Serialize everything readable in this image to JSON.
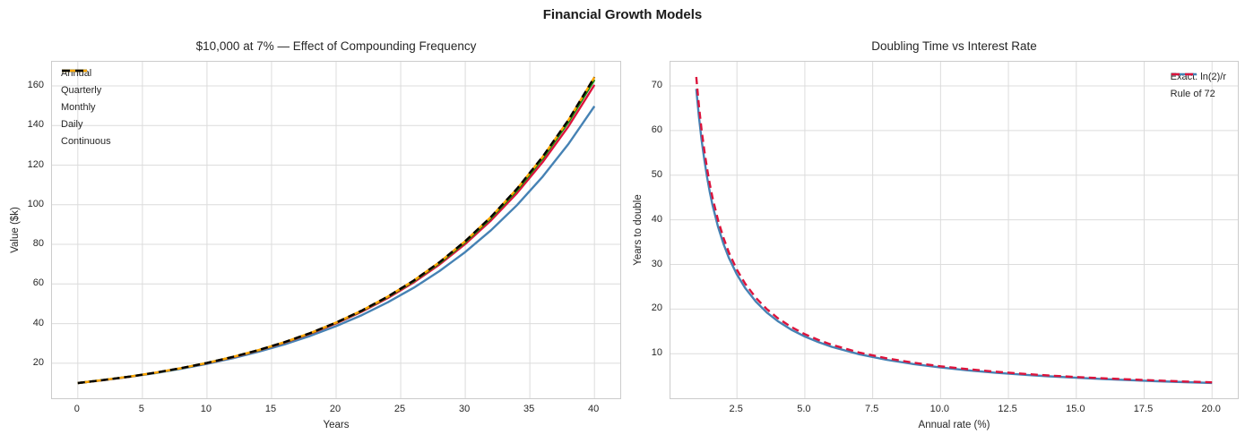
{
  "figure": {
    "title": "Financial Growth Models"
  },
  "colors": {
    "grid": "#dcdcdc",
    "spine": "#cccccc",
    "text": "#262626",
    "annual_blue": "#4682B4",
    "quarterly_crimson": "#DC143C",
    "monthly_green": "#0a8a0a",
    "daily_orange": "#FFA500",
    "continuous_black": "#000000"
  },
  "chart_data": [
    {
      "type": "line",
      "title": "$10,000 at 7% — Effect of Compounding Frequency",
      "xlabel": "Years",
      "ylabel": "Value ($k)",
      "xlim": [
        -2,
        42
      ],
      "ylim": [
        2.3,
        172.2
      ],
      "xticks": [
        0,
        5,
        10,
        15,
        20,
        25,
        30,
        35,
        40
      ],
      "xtick_labels": [
        "0",
        "5",
        "10",
        "15",
        "20",
        "25",
        "30",
        "35",
        "40"
      ],
      "yticks": [
        20,
        40,
        60,
        80,
        100,
        120,
        140,
        160
      ],
      "ytick_labels": [
        "20",
        "40",
        "60",
        "80",
        "100",
        "120",
        "140",
        "160"
      ],
      "grid": true,
      "legend_position": "upper-left",
      "x": [
        0,
        2,
        4,
        6,
        8,
        10,
        12,
        14,
        16,
        18,
        20,
        22,
        24,
        26,
        28,
        30,
        32,
        34,
        36,
        38,
        40
      ],
      "series": [
        {
          "name": "Annual",
          "color": "#4682B4",
          "dash": false,
          "values": [
            10,
            11.45,
            13.11,
            15.01,
            17.18,
            19.67,
            22.52,
            25.79,
            29.52,
            33.8,
            38.7,
            44.3,
            50.72,
            58.07,
            66.49,
            76.12,
            87.15,
            99.78,
            114.24,
            130.79,
            149.74
          ]
        },
        {
          "name": "Quarterly",
          "color": "#DC143C",
          "dash": false,
          "values": [
            10,
            11.49,
            13.2,
            15.16,
            17.42,
            20.02,
            23.0,
            26.42,
            30.35,
            34.87,
            40.06,
            46.03,
            52.88,
            60.75,
            69.8,
            80.19,
            92.13,
            105.84,
            121.6,
            139.7,
            160.5
          ]
        },
        {
          "name": "Monthly",
          "color": "#0a8a0a",
          "dash": false,
          "values": [
            10,
            11.5,
            13.22,
            15.2,
            17.48,
            20.1,
            23.11,
            26.57,
            30.54,
            35.12,
            40.39,
            46.44,
            53.39,
            61.39,
            70.58,
            81.16,
            93.31,
            107.29,
            123.38,
            141.86,
            163.11
          ]
        },
        {
          "name": "Daily",
          "color": "#FFA500",
          "dash": false,
          "values": [
            10,
            11.5,
            13.23,
            15.22,
            17.51,
            20.14,
            23.16,
            26.64,
            30.64,
            35.25,
            40.54,
            46.63,
            53.64,
            61.7,
            70.97,
            81.63,
            93.9,
            108.0,
            124.23,
            142.9,
            164.4
          ]
        },
        {
          "name": "Continuous",
          "color": "#000000",
          "dash": true,
          "values": [
            10,
            11.5,
            13.23,
            15.22,
            17.51,
            20.14,
            23.16,
            26.64,
            30.65,
            35.25,
            40.55,
            46.65,
            53.65,
            61.72,
            70.99,
            81.66,
            93.93,
            108.05,
            124.29,
            142.97,
            164.45
          ]
        }
      ]
    },
    {
      "type": "line",
      "title": "Doubling Time vs Interest Rate",
      "xlabel": "Annual rate (%)",
      "ylabel": "Years to double",
      "xlim": [
        0.05,
        20.95
      ],
      "ylim": [
        0.04,
        75.4
      ],
      "xticks": [
        2.5,
        5,
        7.5,
        10,
        12.5,
        15,
        17.5,
        20
      ],
      "xtick_labels": [
        "2.5",
        "5.0",
        "7.5",
        "10.0",
        "12.5",
        "15.0",
        "17.5",
        "20.0"
      ],
      "yticks": [
        10,
        20,
        30,
        40,
        50,
        60,
        70
      ],
      "ytick_labels": [
        "10",
        "20",
        "30",
        "40",
        "50",
        "60",
        "70"
      ],
      "grid": true,
      "legend_position": "upper-right",
      "x": [
        1,
        1.1,
        1.2,
        1.3,
        1.4,
        1.5,
        1.6,
        1.8,
        2,
        2.2,
        2.5,
        2.8,
        3.2,
        3.6,
        4,
        4.5,
        5,
        5.5,
        6,
        7,
        8,
        9,
        10,
        11,
        12,
        13,
        14,
        15,
        16,
        17,
        18,
        19,
        20
      ],
      "series": [
        {
          "name": "Exact: ln(2)/r",
          "color": "#4682B4",
          "dash": false,
          "values": [
            69.31,
            63.01,
            57.76,
            53.32,
            49.51,
            46.21,
            43.32,
            38.51,
            34.66,
            31.51,
            27.73,
            24.76,
            21.66,
            19.25,
            17.33,
            15.4,
            13.86,
            12.6,
            11.55,
            9.9,
            8.66,
            7.7,
            6.93,
            6.3,
            5.78,
            5.33,
            4.95,
            4.62,
            4.33,
            4.08,
            3.85,
            3.65,
            3.47
          ]
        },
        {
          "name": "Rule of 72",
          "color": "#DC143C",
          "dash": true,
          "values": [
            72,
            65.45,
            60,
            55.38,
            51.43,
            48,
            45,
            40,
            36,
            32.73,
            28.8,
            25.71,
            22.5,
            20,
            18,
            16,
            14.4,
            13.09,
            12,
            10.29,
            9,
            8,
            7.2,
            6.55,
            6,
            5.54,
            5.14,
            4.8,
            4.5,
            4.24,
            4,
            3.79,
            3.6
          ]
        }
      ]
    }
  ]
}
